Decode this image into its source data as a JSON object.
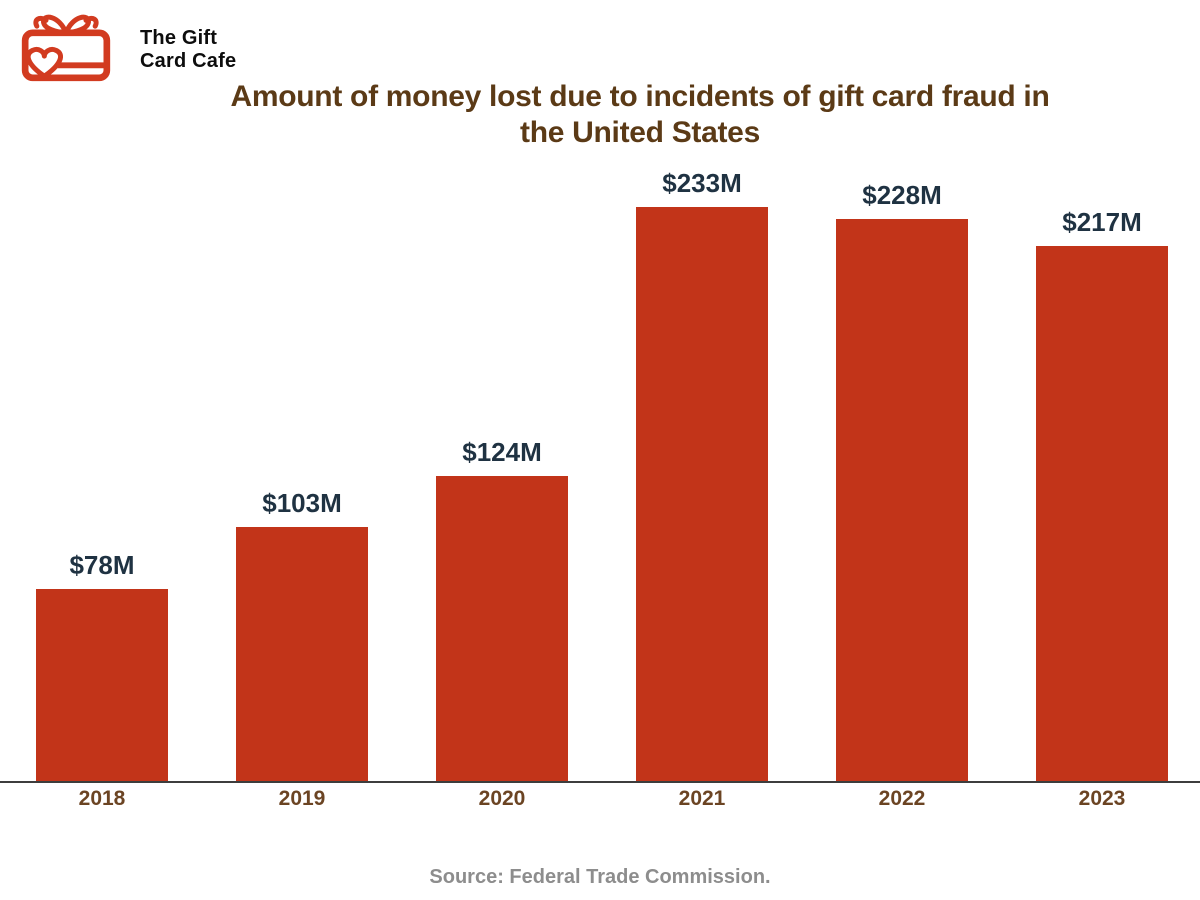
{
  "logo": {
    "brand_line1": "The Gift",
    "brand_line2": "Card Cafe",
    "icon_color": "#D23B20",
    "text_color": "#0D0D0D"
  },
  "title": {
    "line1": "Amount of money lost due to incidents of gift card fraud in",
    "line2": "the United States",
    "color": "#5B3A16"
  },
  "chart_data": {
    "type": "bar",
    "title": "Amount of money lost due to incidents of gift card fraud in the United States",
    "categories": [
      "2018",
      "2019",
      "2020",
      "2021",
      "2022",
      "2023"
    ],
    "values": [
      78,
      103,
      124,
      233,
      228,
      217
    ],
    "value_labels": [
      "$78M",
      "$103M",
      "$124M",
      "$233M",
      "$228M",
      "$217M"
    ],
    "unit": "USD millions",
    "xlabel": "",
    "ylabel": "",
    "ylim": [
      0,
      250
    ],
    "grid": false,
    "legend": "none",
    "bar_color": "#C23419",
    "value_label_color": "#1F3242",
    "category_label_color": "#6B4423",
    "axis_line_color": "#3D3D3D"
  },
  "footer": {
    "source": "Source: Federal Trade Commission.",
    "color": "#8D8D8D"
  }
}
